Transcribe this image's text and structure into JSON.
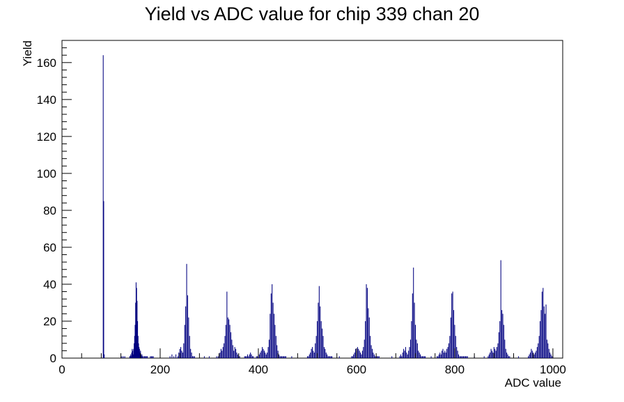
{
  "chart_data": {
    "type": "bar",
    "title": "Yield vs ADC value for chip 339 chan 20",
    "xlabel": "ADC value",
    "ylabel": "Yield",
    "xlim": [
      0,
      1020
    ],
    "ylim": [
      0,
      172
    ],
    "xticks": [
      0,
      200,
      400,
      600,
      800,
      1000
    ],
    "yticks": [
      0,
      20,
      40,
      60,
      80,
      100,
      120,
      140,
      160
    ],
    "grid": false,
    "legend": "none",
    "colors": {
      "series": "#000080",
      "axes": "#000000",
      "background": "#ffffff"
    },
    "series": [
      {
        "x": [
          84,
          85,
          86,
          122,
          125,
          128,
          138,
          139,
          140,
          141,
          142,
          143,
          144,
          145,
          146,
          147,
          148,
          149,
          150,
          151,
          152,
          153,
          154,
          155,
          156,
          157,
          158,
          159,
          160,
          161,
          162,
          163,
          164,
          165,
          166,
          167,
          168,
          169,
          170,
          171,
          172,
          173,
          174,
          180,
          182,
          184,
          186,
          220,
          224,
          228,
          232,
          236,
          238,
          240,
          242,
          244,
          246,
          248,
          250,
          252,
          254,
          256,
          258,
          260,
          262,
          264,
          266,
          268,
          270,
          290,
          300,
          315,
          318,
          320,
          322,
          324,
          326,
          328,
          330,
          332,
          334,
          336,
          338,
          340,
          342,
          344,
          346,
          348,
          350,
          352,
          354,
          356,
          358,
          360,
          362,
          372,
          374,
          376,
          378,
          380,
          382,
          384,
          386,
          388,
          390,
          396,
          398,
          400,
          402,
          404,
          406,
          408,
          410,
          412,
          414,
          416,
          418,
          420,
          422,
          424,
          426,
          428,
          430,
          432,
          434,
          436,
          438,
          440,
          442,
          444,
          446,
          448,
          450,
          452,
          454,
          456,
          468,
          500,
          502,
          504,
          506,
          508,
          510,
          512,
          514,
          516,
          518,
          520,
          522,
          524,
          526,
          528,
          530,
          532,
          534,
          536,
          538,
          540,
          542,
          544,
          546,
          548,
          550,
          565,
          590,
          592,
          594,
          596,
          598,
          600,
          602,
          604,
          606,
          608,
          610,
          612,
          614,
          616,
          618,
          620,
          622,
          624,
          626,
          628,
          630,
          632,
          634,
          636,
          638,
          640,
          642,
          644,
          646,
          672,
          688,
          690,
          692,
          694,
          696,
          698,
          700,
          702,
          704,
          706,
          708,
          710,
          712,
          714,
          716,
          718,
          720,
          722,
          724,
          726,
          728,
          730,
          732,
          734,
          736,
          738,
          740,
          752,
          764,
          766,
          768,
          770,
          772,
          774,
          776,
          778,
          780,
          782,
          784,
          786,
          788,
          790,
          792,
          794,
          796,
          798,
          800,
          802,
          804,
          806,
          808,
          810,
          812,
          814,
          816,
          818,
          820,
          822,
          824,
          826,
          840,
          860,
          868,
          870,
          872,
          874,
          876,
          878,
          880,
          882,
          884,
          886,
          888,
          890,
          892,
          894,
          896,
          898,
          900,
          902,
          904,
          906,
          908,
          910,
          912,
          930,
          950,
          952,
          954,
          956,
          958,
          960,
          962,
          964,
          966,
          968,
          970,
          972,
          974,
          976,
          978,
          980,
          982,
          984,
          986,
          988,
          990,
          992,
          994,
          996,
          998,
          1000
        ],
        "values": [
          164,
          85,
          2,
          1,
          1,
          1,
          1,
          1,
          2,
          1,
          3,
          5,
          4,
          2,
          5,
          8,
          12,
          18,
          30,
          41,
          38,
          31,
          20,
          12,
          8,
          6,
          5,
          3,
          4,
          2,
          1,
          2,
          1,
          0,
          1,
          0,
          1,
          1,
          0,
          1,
          0,
          1,
          1,
          1,
          1,
          1,
          1,
          1,
          2,
          1,
          2,
          1,
          3,
          5,
          6,
          4,
          3,
          8,
          18,
          28,
          51,
          34,
          22,
          12,
          5,
          3,
          1,
          1,
          1,
          1,
          1,
          1,
          1,
          2,
          3,
          5,
          4,
          6,
          8,
          12,
          18,
          36,
          22,
          21,
          18,
          14,
          10,
          7,
          4,
          6,
          5,
          3,
          2,
          1,
          1,
          1,
          1,
          1,
          2,
          1,
          2,
          3,
          2,
          1,
          1,
          1,
          1,
          1,
          2,
          3,
          4,
          6,
          5,
          4,
          3,
          2,
          3,
          6,
          10,
          24,
          35,
          40,
          30,
          24,
          18,
          12,
          7,
          4,
          2,
          1,
          1,
          1,
          1,
          1,
          1,
          1,
          1,
          1,
          1,
          2,
          3,
          5,
          6,
          4,
          3,
          8,
          12,
          20,
          30,
          39,
          28,
          20,
          16,
          12,
          6,
          5,
          3,
          2,
          1,
          1,
          1,
          1,
          1,
          1,
          1,
          1,
          2,
          3,
          5,
          4,
          6,
          5,
          4,
          3,
          2,
          4,
          6,
          10,
          20,
          40,
          38,
          27,
          22,
          12,
          7,
          5,
          3,
          2,
          1,
          1,
          1,
          1,
          1,
          1,
          1,
          2,
          1,
          3,
          5,
          4,
          6,
          3,
          2,
          4,
          6,
          10,
          20,
          35,
          49,
          30,
          18,
          10,
          8,
          4,
          3,
          2,
          1,
          1,
          1,
          1,
          1,
          1,
          1,
          1,
          2,
          3,
          2,
          4,
          5,
          3,
          4,
          3,
          5,
          6,
          8,
          12,
          22,
          35,
          36,
          26,
          18,
          12,
          6,
          4,
          2,
          1,
          1,
          1,
          1,
          1,
          1,
          1,
          1,
          1,
          1,
          1,
          1,
          2,
          3,
          5,
          4,
          3,
          6,
          5,
          4,
          6,
          8,
          14,
          20,
          53,
          26,
          24,
          18,
          10,
          5,
          3,
          2,
          1,
          1,
          1,
          1,
          2,
          3,
          5,
          4,
          3,
          2,
          3,
          4,
          6,
          8,
          12,
          20,
          26,
          36,
          38,
          28,
          24,
          29,
          10,
          8,
          5,
          3,
          2,
          1,
          1
        ]
      }
    ]
  }
}
